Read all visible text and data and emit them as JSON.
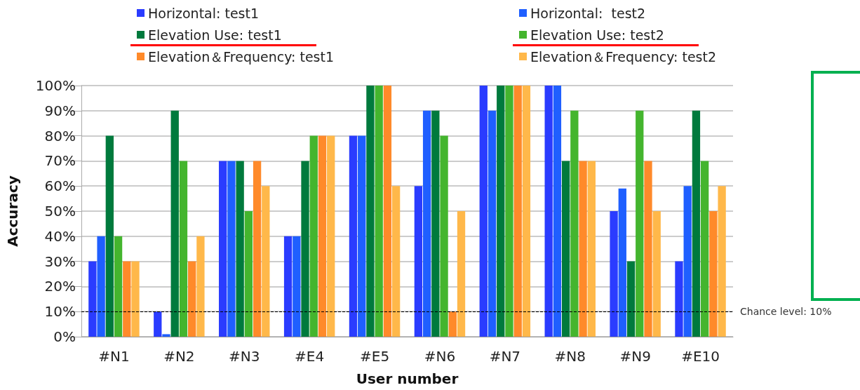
{
  "chart_data": {
    "type": "bar",
    "xlabel": "User number",
    "ylabel": "Accuracy",
    "categories": [
      "#N1",
      "#N2",
      "#N3",
      "#E4",
      "#E5",
      "#N6",
      "#N7",
      "#N8",
      "#N9",
      "#E10"
    ],
    "series": [
      {
        "name": "Horizontal: test1",
        "color": "#2a3cff",
        "values": [
          30,
          10,
          70,
          40,
          80,
          60,
          100,
          100,
          50,
          30
        ]
      },
      {
        "name": "Horizontal:  test2",
        "color": "#1f5fff",
        "values": [
          40,
          1,
          70,
          40,
          80,
          90,
          90,
          100,
          59,
          60
        ]
      },
      {
        "name": "Elevation Use: test1",
        "color": "#007a3d",
        "values": [
          80,
          90,
          70,
          70,
          100,
          90,
          100,
          70,
          30,
          90
        ]
      },
      {
        "name": "Elevation Use: test2",
        "color": "#44b52e",
        "values": [
          40,
          70,
          50,
          80,
          100,
          80,
          100,
          90,
          90,
          70
        ]
      },
      {
        "name": "Elevation＆Frequency: test1",
        "color": "#ff8a2a",
        "values": [
          30,
          30,
          70,
          80,
          100,
          10,
          100,
          70,
          70,
          50
        ]
      },
      {
        "name": "Elevation＆Frequency: test2",
        "color": "#ffb84a",
        "values": [
          30,
          40,
          60,
          80,
          60,
          50,
          100,
          70,
          50,
          60
        ]
      }
    ],
    "ylim": [
      0,
      100
    ],
    "yticks": [
      {
        "value": 0,
        "label": "0%"
      },
      {
        "value": 10,
        "label": "10%"
      },
      {
        "value": 20,
        "label": "20%"
      },
      {
        "value": 30,
        "label": "30%"
      },
      {
        "value": 40,
        "label": "40%"
      },
      {
        "value": 50,
        "label": "50%"
      },
      {
        "value": 60,
        "label": "60%"
      },
      {
        "value": 70,
        "label": "70%"
      },
      {
        "value": 80,
        "label": "80%"
      },
      {
        "value": 90,
        "label": "90%"
      },
      {
        "value": 100,
        "label": "100%"
      }
    ],
    "ref_lines": [
      {
        "axis": "y",
        "value": 10,
        "label": "Chance level: 10%",
        "color": "#000000",
        "line_style": "dashed"
      }
    ],
    "grid": "y",
    "legend": "top"
  }
}
